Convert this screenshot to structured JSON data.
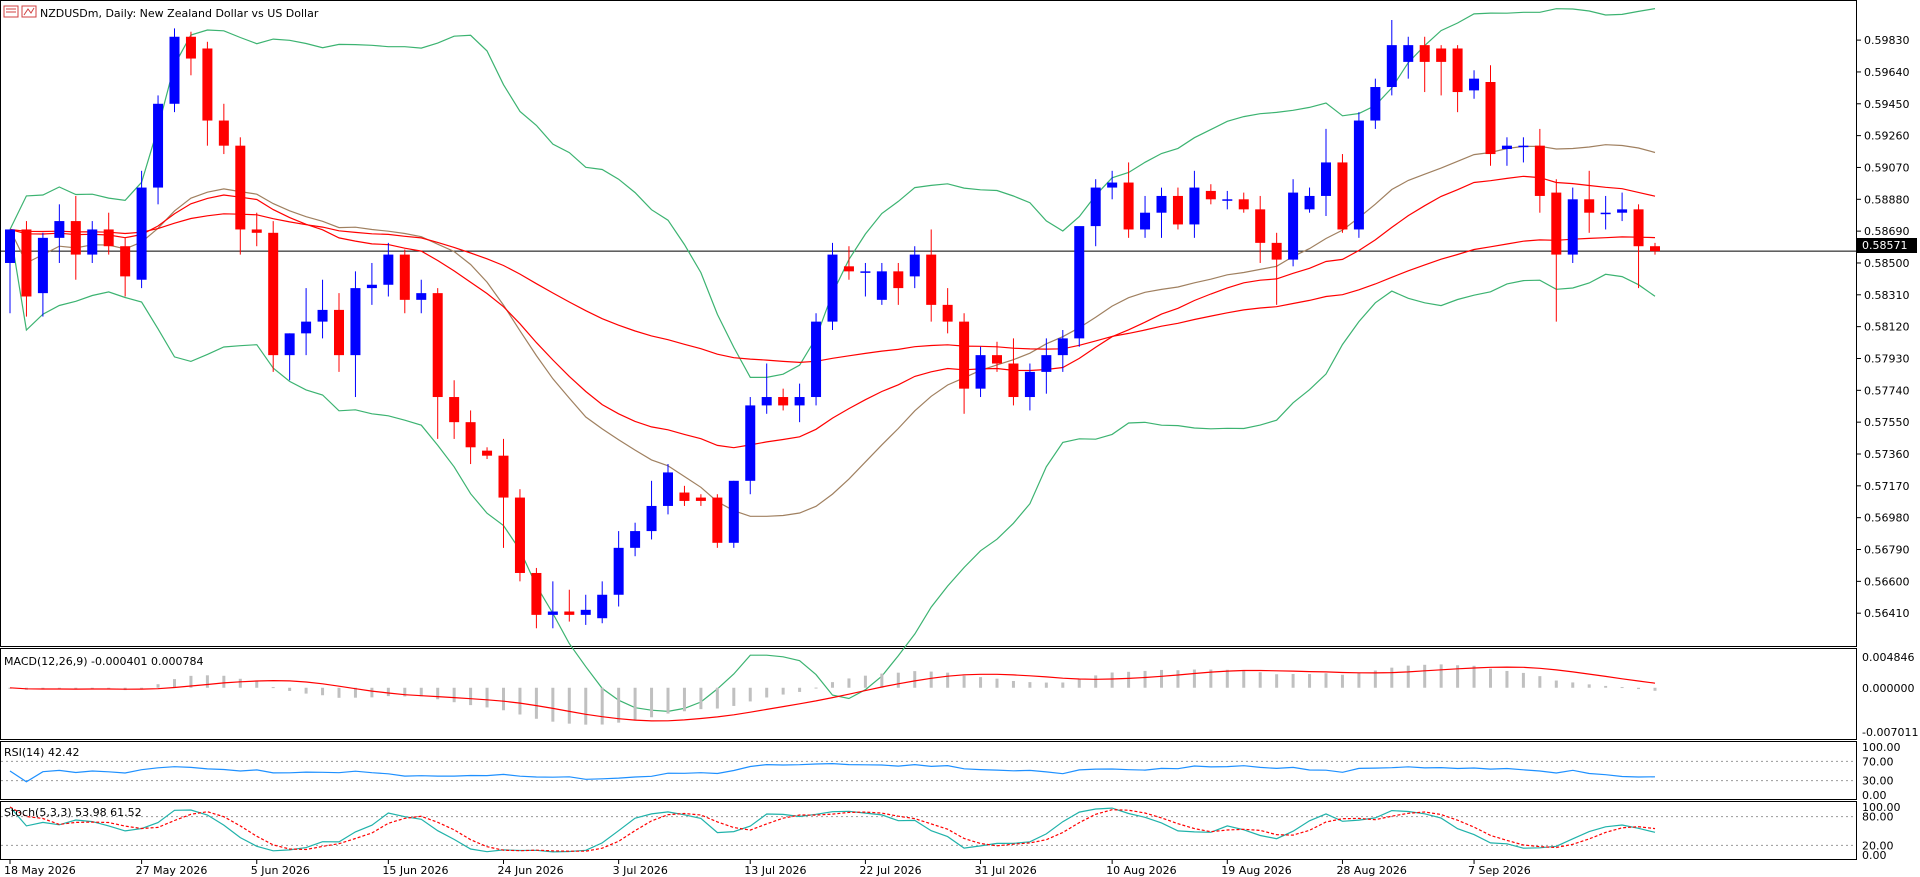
{
  "window": {
    "symbol": "NZDUSDm",
    "header": "NZDUSDm, Daily:  New Zealand Dollar vs US Dollar",
    "current_price": "0.58571"
  },
  "colors": {
    "bull": "#0000ff",
    "bear": "#ff0000",
    "bollinger": "#3cb371",
    "ma_tan": "#a08060",
    "ma_red": "#ff0000",
    "macd_hist": "#c0c0c0",
    "macd_signal": "#ff0000",
    "rsi": "#1e90ff",
    "stoch_main": "#20b2aa",
    "stoch_signal": "#ff0000"
  },
  "chart_data": [
    {
      "type": "candlestick",
      "title": "NZDUSDm, Daily:  New Zealand Dollar vs US Dollar",
      "ylim": [
        0.5625,
        0.5995
      ],
      "y_ticks": [
        "0.59830",
        "0.59640",
        "0.59450",
        "0.59260",
        "0.59070",
        "0.58880",
        "0.58690",
        "0.58500",
        "0.58310",
        "0.58120",
        "0.57930",
        "0.57740",
        "0.57550",
        "0.57360",
        "0.57170",
        "0.56980",
        "0.56790",
        "0.56600",
        "0.56410"
      ],
      "x_labels": [
        {
          "label": "18 May 2026",
          "index": 0
        },
        {
          "label": "27 May 2026",
          "index": 8
        },
        {
          "label": "5 Jun 2026",
          "index": 15
        },
        {
          "label": "15 Jun 2026",
          "index": 23
        },
        {
          "label": "24 Jun 2026",
          "index": 30
        },
        {
          "label": "3 Jul 2026",
          "index": 37
        },
        {
          "label": "13 Jul 2026",
          "index": 45
        },
        {
          "label": "22 Jul 2026",
          "index": 52
        },
        {
          "label": "31 Jul 2026",
          "index": 59
        },
        {
          "label": "10 Aug 2026",
          "index": 67
        },
        {
          "label": "19 Aug 2026",
          "index": 74
        },
        {
          "label": "28 Aug 2026",
          "index": 81
        },
        {
          "label": "7 Sep 2026",
          "index": 89
        }
      ],
      "ohlc": [
        [
          0.585,
          0.587,
          0.582,
          0.587
        ],
        [
          0.587,
          0.5875,
          0.5818,
          0.583
        ],
        [
          0.5832,
          0.5868,
          0.5818,
          0.5865
        ],
        [
          0.5865,
          0.5885,
          0.585,
          0.5875
        ],
        [
          0.5875,
          0.589,
          0.584,
          0.5855
        ],
        [
          0.5855,
          0.5875,
          0.585,
          0.587
        ],
        [
          0.587,
          0.588,
          0.5855,
          0.586
        ],
        [
          0.586,
          0.5865,
          0.583,
          0.5842
        ],
        [
          0.584,
          0.5905,
          0.5835,
          0.5895
        ],
        [
          0.5895,
          0.595,
          0.5885,
          0.5945
        ],
        [
          0.5945,
          0.599,
          0.594,
          0.5985
        ],
        [
          0.5985,
          0.5988,
          0.5962,
          0.5972
        ],
        [
          0.5978,
          0.5982,
          0.592,
          0.5935
        ],
        [
          0.5935,
          0.5945,
          0.5915,
          0.592
        ],
        [
          0.592,
          0.5925,
          0.5855,
          0.587
        ],
        [
          0.587,
          0.588,
          0.586,
          0.5868
        ],
        [
          0.5868,
          0.5875,
          0.5785,
          0.5795
        ],
        [
          0.5795,
          0.5808,
          0.578,
          0.5808
        ],
        [
          0.5808,
          0.5835,
          0.5795,
          0.5815
        ],
        [
          0.5815,
          0.584,
          0.5805,
          0.5822
        ],
        [
          0.5822,
          0.5832,
          0.5785,
          0.5795
        ],
        [
          0.5795,
          0.5845,
          0.577,
          0.5835
        ],
        [
          0.5835,
          0.585,
          0.5825,
          0.5837
        ],
        [
          0.5837,
          0.5862,
          0.583,
          0.5855
        ],
        [
          0.5855,
          0.5858,
          0.582,
          0.5828
        ],
        [
          0.5828,
          0.584,
          0.582,
          0.5832
        ],
        [
          0.5832,
          0.5835,
          0.5745,
          0.577
        ],
        [
          0.577,
          0.578,
          0.5745,
          0.5755
        ],
        [
          0.5755,
          0.5762,
          0.573,
          0.574
        ],
        [
          0.5738,
          0.574,
          0.5733,
          0.5735
        ],
        [
          0.5735,
          0.5745,
          0.568,
          0.571
        ],
        [
          0.571,
          0.5715,
          0.566,
          0.5665
        ],
        [
          0.5665,
          0.5668,
          0.5632,
          0.564
        ],
        [
          0.564,
          0.566,
          0.5632,
          0.5642
        ],
        [
          0.5642,
          0.5655,
          0.5636,
          0.564
        ],
        [
          0.564,
          0.5652,
          0.5634,
          0.5643
        ],
        [
          0.5638,
          0.566,
          0.5635,
          0.5652
        ],
        [
          0.5652,
          0.569,
          0.5645,
          0.568
        ],
        [
          0.568,
          0.5695,
          0.5675,
          0.569
        ],
        [
          0.569,
          0.572,
          0.5685,
          0.5705
        ],
        [
          0.5705,
          0.573,
          0.57,
          0.5725
        ],
        [
          0.5713,
          0.5717,
          0.5705,
          0.5708
        ],
        [
          0.571,
          0.5712,
          0.5705,
          0.5708
        ],
        [
          0.571,
          0.5712,
          0.568,
          0.5683
        ],
        [
          0.5683,
          0.572,
          0.568,
          0.572
        ],
        [
          0.572,
          0.577,
          0.5712,
          0.5765
        ],
        [
          0.5765,
          0.579,
          0.576,
          0.577
        ],
        [
          0.577,
          0.5775,
          0.5762,
          0.5765
        ],
        [
          0.5765,
          0.5778,
          0.5755,
          0.577
        ],
        [
          0.577,
          0.582,
          0.5765,
          0.5815
        ],
        [
          0.5815,
          0.5862,
          0.581,
          0.5855
        ],
        [
          0.5848,
          0.586,
          0.584,
          0.5845
        ],
        [
          0.5845,
          0.585,
          0.583,
          0.5845
        ],
        [
          0.5828,
          0.585,
          0.5825,
          0.5845
        ],
        [
          0.5845,
          0.585,
          0.5825,
          0.5835
        ],
        [
          0.5842,
          0.586,
          0.5835,
          0.5855
        ],
        [
          0.5855,
          0.587,
          0.5815,
          0.5825
        ],
        [
          0.5825,
          0.5835,
          0.5808,
          0.5815
        ],
        [
          0.5815,
          0.582,
          0.576,
          0.5775
        ],
        [
          0.5775,
          0.58,
          0.577,
          0.5795
        ],
        [
          0.5795,
          0.5803,
          0.5785,
          0.579
        ],
        [
          0.579,
          0.5805,
          0.5765,
          0.577
        ],
        [
          0.577,
          0.579,
          0.5762,
          0.5785
        ],
        [
          0.5785,
          0.5805,
          0.5772,
          0.5795
        ],
        [
          0.5795,
          0.581,
          0.5785,
          0.5805
        ],
        [
          0.5805,
          0.587,
          0.58,
          0.5872
        ],
        [
          0.5872,
          0.59,
          0.586,
          0.5895
        ],
        [
          0.5895,
          0.5905,
          0.5888,
          0.5898
        ],
        [
          0.5898,
          0.591,
          0.5865,
          0.587
        ],
        [
          0.587,
          0.589,
          0.5865,
          0.588
        ],
        [
          0.588,
          0.5895,
          0.5865,
          0.589
        ],
        [
          0.589,
          0.5895,
          0.587,
          0.5873
        ],
        [
          0.5873,
          0.5905,
          0.5865,
          0.5895
        ],
        [
          0.5893,
          0.5897,
          0.5885,
          0.5888
        ],
        [
          0.5888,
          0.5893,
          0.5882,
          0.5888
        ],
        [
          0.5888,
          0.5892,
          0.588,
          0.5882
        ],
        [
          0.5882,
          0.589,
          0.585,
          0.5862
        ],
        [
          0.5862,
          0.5868,
          0.5825,
          0.5852
        ],
        [
          0.5852,
          0.59,
          0.5848,
          0.5892
        ],
        [
          0.5882,
          0.5895,
          0.588,
          0.589
        ],
        [
          0.589,
          0.593,
          0.5878,
          0.591
        ],
        [
          0.591,
          0.5915,
          0.5868,
          0.587
        ],
        [
          0.587,
          0.594,
          0.5865,
          0.5935
        ],
        [
          0.5935,
          0.596,
          0.593,
          0.5955
        ],
        [
          0.5955,
          0.5995,
          0.595,
          0.598
        ],
        [
          0.597,
          0.5985,
          0.596,
          0.598
        ],
        [
          0.598,
          0.5985,
          0.5952,
          0.597
        ],
        [
          0.5978,
          0.598,
          0.595,
          0.597
        ],
        [
          0.5978,
          0.598,
          0.594,
          0.5952
        ],
        [
          0.5953,
          0.5965,
          0.5948,
          0.596
        ],
        [
          0.5958,
          0.5968,
          0.5908,
          0.5915
        ],
        [
          0.5918,
          0.5925,
          0.5908,
          0.592
        ],
        [
          0.592,
          0.5925,
          0.591,
          0.592
        ],
        [
          0.592,
          0.593,
          0.588,
          0.589
        ],
        [
          0.5892,
          0.59,
          0.5815,
          0.5855
        ],
        [
          0.5855,
          0.5895,
          0.585,
          0.5888
        ],
        [
          0.5888,
          0.5905,
          0.5868,
          0.588
        ],
        [
          0.588,
          0.589,
          0.587,
          0.588
        ],
        [
          0.588,
          0.5892,
          0.5875,
          0.5882
        ],
        [
          0.5882,
          0.5885,
          0.5835,
          0.586
        ],
        [
          0.586,
          0.5862,
          0.5855,
          0.5857
        ]
      ]
    },
    {
      "type": "histogram",
      "title": "MACD(12,26,9) -0.000401 0.000784",
      "ylim": [
        -0.0075,
        0.0052
      ],
      "y_ticks": [
        "0.004846",
        "0.000000",
        "-0.007011"
      ]
    },
    {
      "type": "line",
      "title": "RSI(14) 42.42",
      "ylim": [
        0,
        100
      ],
      "y_ticks": [
        "100.00",
        "70.00",
        "30.00",
        "0.00"
      ]
    },
    {
      "type": "line",
      "title": "Stoch(5,3,3) 53.98 61.52",
      "ylim": [
        0,
        100
      ],
      "y_ticks": [
        "100.00",
        "80.00",
        "20.00",
        "0.00"
      ]
    }
  ]
}
